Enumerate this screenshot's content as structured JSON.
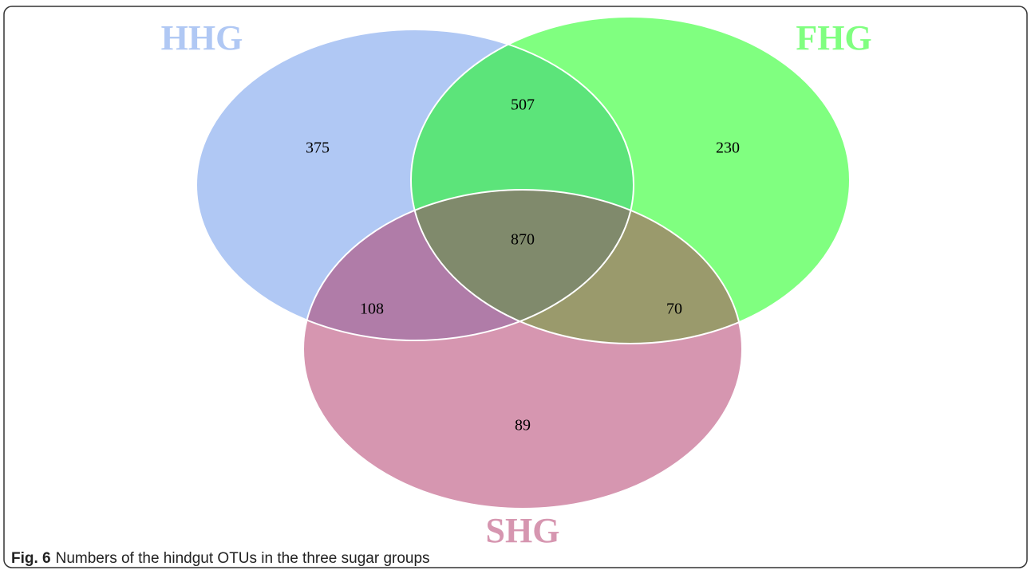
{
  "figure": {
    "sets": [
      {
        "label": "HHG"
      },
      {
        "label": "FHG"
      },
      {
        "label": "SHG"
      }
    ],
    "regions": {
      "HHG_only": "375",
      "HHG_FHG": "507",
      "FHG_only": "230",
      "all": "870",
      "HHG_SHG": "108",
      "FHG_SHG": "70",
      "SHG_only": "89"
    },
    "caption": {
      "label": "Fig. 6",
      "text": "Numbers of the hindgut OTUs in the three sugar groups"
    }
  }
}
